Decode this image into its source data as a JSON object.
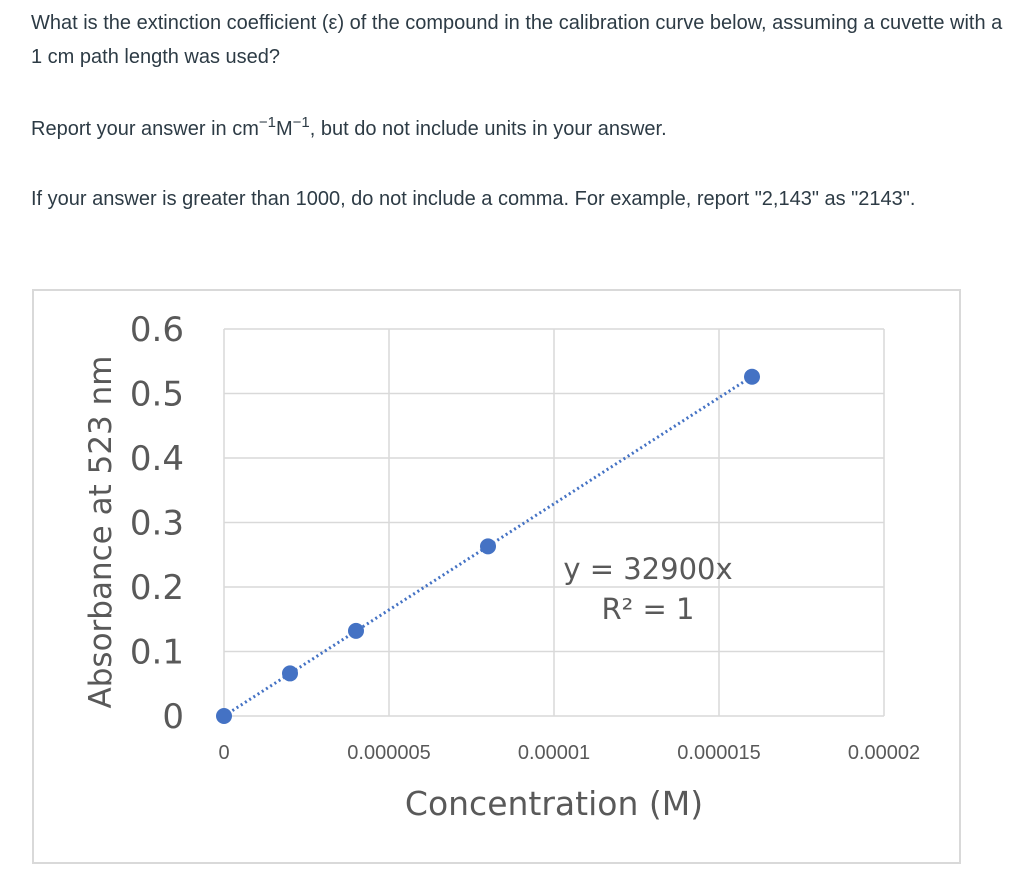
{
  "question": {
    "line1": "What is the extinction coefficient (ε) of the compound in the calibration curve below, assuming a cuvette with a 1 cm path length was used?",
    "units_prefix": "Report your answer in cm",
    "units_exp1": "−1",
    "units_mid": "M",
    "units_exp2": "−1",
    "units_suffix": ", but do not include units in your answer.",
    "line3": "If your answer is greater than 1000, do not include a comma.  For example, report \"2,143\" as \"2143\"."
  },
  "chart_data": {
    "type": "scatter",
    "title": "",
    "xlabel": "Concentration (M)",
    "ylabel": "Absorbance at 523 nm",
    "xlim": [
      0,
      2e-05
    ],
    "ylim": [
      0,
      0.6
    ],
    "x_ticks": [
      "0",
      "0.000005",
      "0.00001",
      "0.000015",
      "0.00002"
    ],
    "y_ticks": [
      "0",
      "0.1",
      "0.2",
      "0.3",
      "0.4",
      "0.5",
      "0.6"
    ],
    "grid": true,
    "series": [
      {
        "x": [
          0,
          2e-06,
          4e-06,
          8e-06,
          1.6e-05
        ],
        "y": [
          0,
          0.066,
          0.132,
          0.263,
          0.526
        ]
      }
    ],
    "trendline": {
      "type": "linear",
      "slope": 32900,
      "intercept": 0,
      "style": "dotted"
    },
    "annotations": [
      "y = 32900x",
      "R² = 1"
    ],
    "colors": {
      "marker": "#4472c4",
      "grid": "#d9d9d9",
      "text": "#595959"
    }
  }
}
